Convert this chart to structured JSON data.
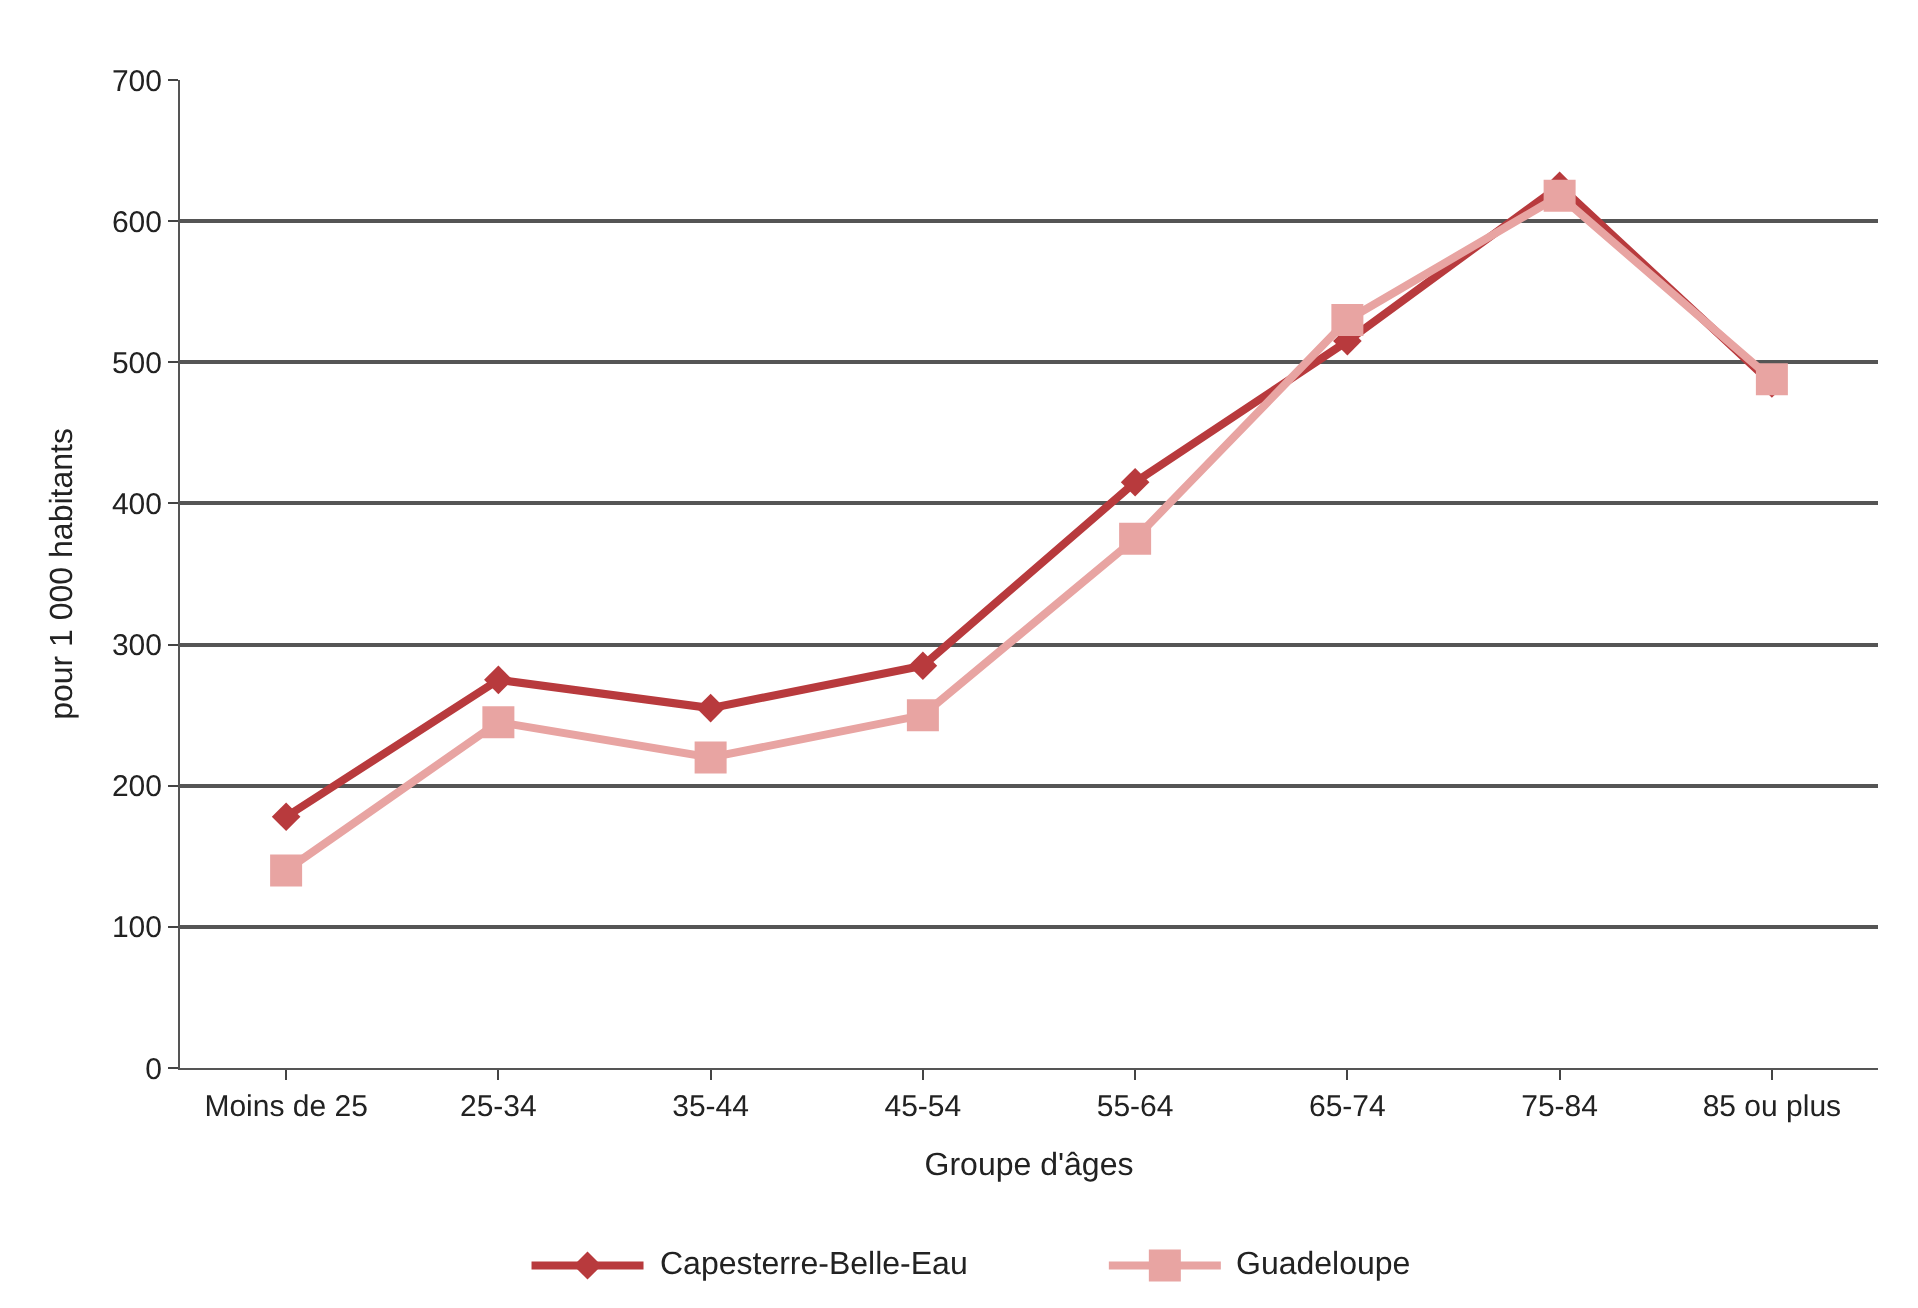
{
  "chart_data": {
    "type": "line",
    "xlabel": "Groupe d'âges",
    "ylabel": "pour 1 000 habitants",
    "categories": [
      "Moins de 25",
      "25-34",
      "35-44",
      "45-54",
      "55-64",
      "65-74",
      "75-84",
      "85 ou plus"
    ],
    "series": [
      {
        "name": "Capesterre-Belle-Eau",
        "color": "#b83a3d",
        "marker": "diamond",
        "values": [
          178,
          275,
          255,
          285,
          415,
          515,
          625,
          485
        ]
      },
      {
        "name": "Guadeloupe",
        "color": "#e8a4a2",
        "marker": "square",
        "values": [
          140,
          245,
          220,
          250,
          375,
          530,
          618,
          488
        ]
      }
    ],
    "ylim": [
      0,
      700
    ],
    "yticks": [
      0,
      100,
      200,
      300,
      400,
      500,
      600,
      700
    ],
    "grid": "y",
    "legend": "bottom",
    "line_style": "solid"
  }
}
